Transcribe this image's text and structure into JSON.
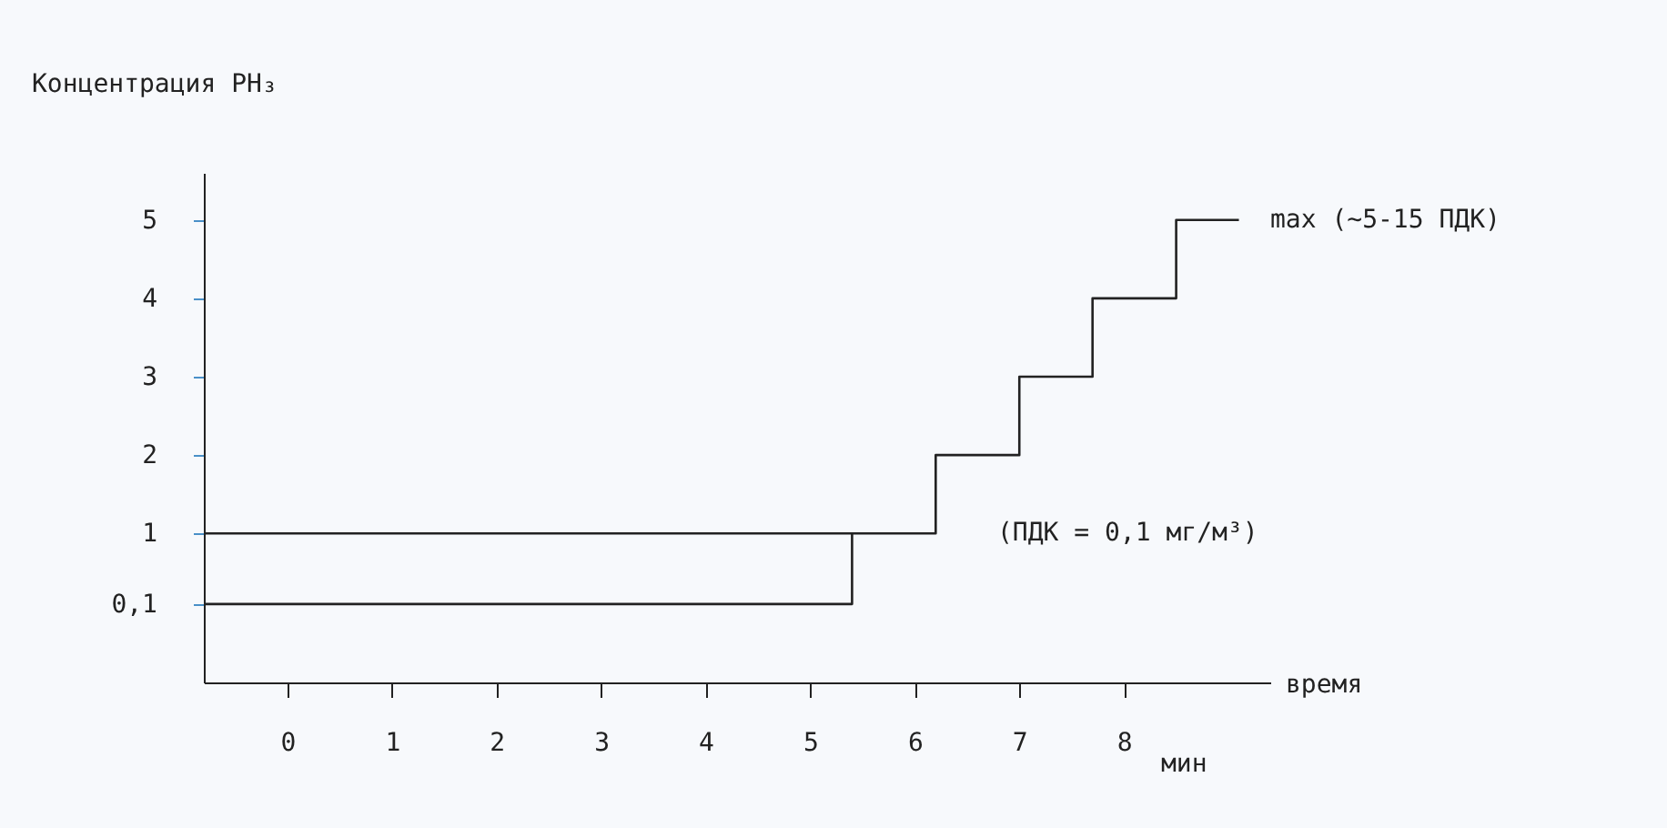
{
  "chart_data": {
    "type": "step",
    "ylabel": "Концентрация PH₃",
    "xlabel": "время",
    "xlim": [
      -0.8,
      9.4
    ],
    "ylim": [
      -0.9,
      5.6
    ],
    "xticks": [
      0,
      1,
      2,
      3,
      4,
      5,
      6,
      7,
      8
    ],
    "yticks": [
      {
        "value": 0.1,
        "label": "0,1"
      },
      1,
      2,
      3,
      4,
      5
    ],
    "series": [
      {
        "color": "#222222",
        "x": [
          -0.8,
          5.4,
          6.2,
          7.0,
          7.7,
          8.5,
          9.1
        ],
        "values": [
          0.1,
          1,
          2,
          3,
          4,
          5,
          5
        ]
      },
      {
        "type": "line",
        "color": "#222222",
        "x": [
          -0.8,
          5.4
        ],
        "values": [
          1,
          1
        ]
      }
    ],
    "annotations": [
      "(ПДК = 0,1 мг/м³)",
      "max (~5-15 ПДК)",
      "мин"
    ],
    "grid": false
  }
}
